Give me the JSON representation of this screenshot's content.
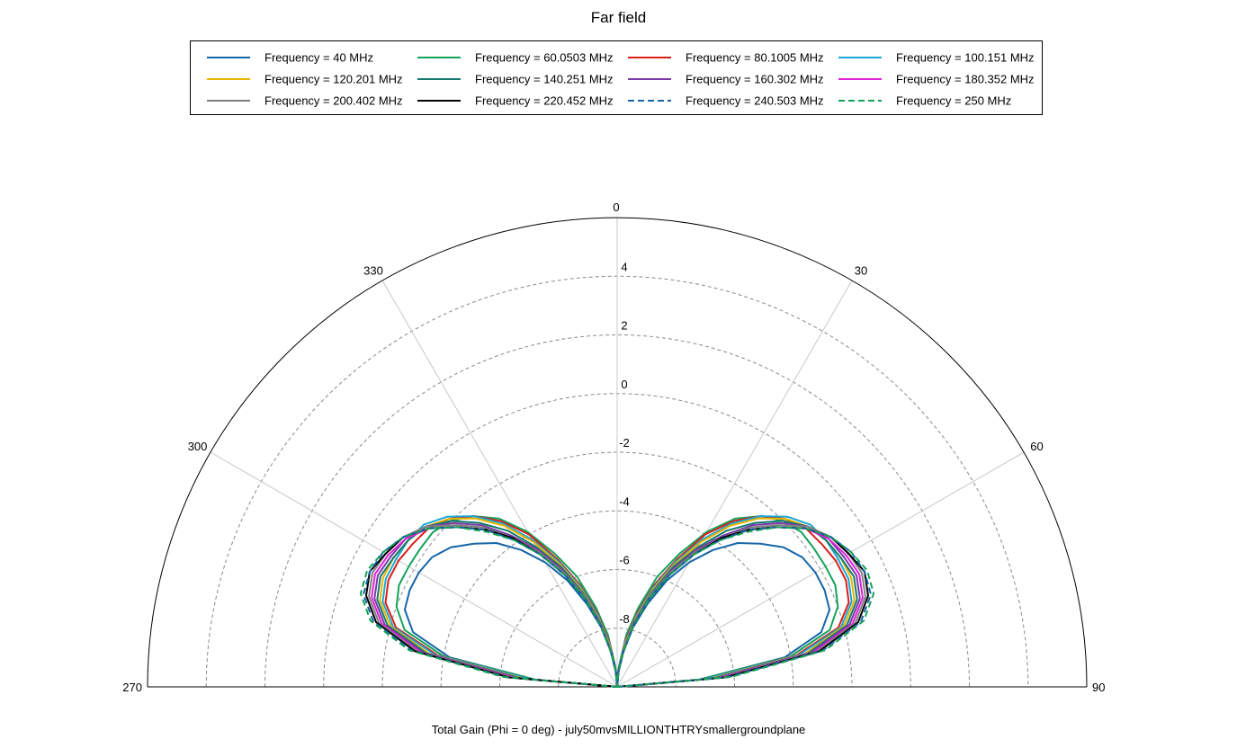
{
  "chart_data": {
    "type": "polar-line",
    "title": "Far field",
    "xlabel": "Total Gain (Phi = 0 deg) - july50mvsMILLIONTHTRYsmallergroundplane",
    "angle_range_deg": [
      -90,
      90
    ],
    "angle_ticks": [
      "270",
      "300",
      "330",
      "0",
      "30",
      "60",
      "90"
    ],
    "radial_range": [
      -10,
      6
    ],
    "radial_ticks": [
      "-8",
      "-6",
      "-4",
      "-2",
      "0",
      "2",
      "4"
    ],
    "grid": true,
    "legend_position": "top",
    "angles": [
      -90,
      -85,
      -80,
      -75,
      -70,
      -65,
      -60,
      -55,
      -50,
      -45,
      -40,
      -35,
      -30,
      -25,
      -20,
      -15,
      -10,
      -5,
      0,
      5,
      10,
      15,
      20,
      25,
      30,
      35,
      40,
      45,
      50,
      55,
      60,
      65,
      70,
      75,
      80,
      85,
      90
    ],
    "series": [
      {
        "name": "Frequency = 40 MHz",
        "color": "#1565a8",
        "dash": "solid",
        "values": [
          -10,
          -7.2,
          -4.2,
          -2.8,
          -2.3,
          -2.2,
          -2.2,
          -2.3,
          -2.6,
          -3.1,
          -3.6,
          -4.3,
          -5.1,
          -6.0,
          -7.0,
          -7.9,
          -8.8,
          -9.5,
          -10,
          -9.5,
          -8.8,
          -7.9,
          -7.0,
          -6.0,
          -5.1,
          -4.3,
          -3.6,
          -3.1,
          -2.6,
          -2.3,
          -2.2,
          -2.2,
          -2.3,
          -2.8,
          -4.2,
          -7.2,
          -10
        ]
      },
      {
        "name": "Frequency = 60.0503 MHz",
        "color": "#14a35a",
        "dash": "solid",
        "values": [
          -10,
          -7.2,
          -4.0,
          -2.5,
          -2.0,
          -1.8,
          -1.8,
          -1.8,
          -1.8,
          -2.0,
          -2.4,
          -3.0,
          -3.9,
          -5.0,
          -6.0,
          -7.2,
          -8.2,
          -9.3,
          -10,
          -9.3,
          -8.2,
          -7.2,
          -6.0,
          -5.0,
          -3.9,
          -3.0,
          -2.4,
          -2.0,
          -1.8,
          -1.8,
          -1.8,
          -1.8,
          -2.0,
          -2.5,
          -4.0,
          -7.2,
          -10
        ]
      },
      {
        "name": "Frequency = 80.1005 MHz",
        "color": "#d91e18",
        "dash": "solid",
        "values": [
          -10,
          -7.0,
          -3.8,
          -2.2,
          -1.6,
          -1.4,
          -1.4,
          -1.5,
          -1.6,
          -1.9,
          -2.4,
          -3.1,
          -4.0,
          -5.2,
          -6.3,
          -7.4,
          -8.4,
          -9.4,
          -10,
          -9.4,
          -8.4,
          -7.4,
          -6.3,
          -5.2,
          -4.0,
          -3.1,
          -2.4,
          -1.9,
          -1.6,
          -1.5,
          -1.4,
          -1.4,
          -1.6,
          -2.2,
          -3.8,
          -7.0,
          -10
        ]
      },
      {
        "name": "Frequency = 100.151 MHz",
        "color": "#1aa7d6",
        "dash": "solid",
        "values": [
          -10,
          -7.0,
          -3.7,
          -2.1,
          -1.5,
          -1.3,
          -1.3,
          -1.3,
          -1.4,
          -1.8,
          -2.4,
          -3.2,
          -4.2,
          -5.3,
          -6.4,
          -7.5,
          -8.5,
          -9.4,
          -10,
          -9.4,
          -8.5,
          -7.5,
          -6.4,
          -5.3,
          -4.2,
          -3.2,
          -2.4,
          -1.8,
          -1.4,
          -1.3,
          -1.3,
          -1.3,
          -1.5,
          -2.1,
          -3.7,
          -7.0,
          -10
        ]
      },
      {
        "name": "Frequency = 120.201 MHz",
        "color": "#e8b400",
        "dash": "solid",
        "values": [
          -10,
          -6.8,
          -3.5,
          -2.0,
          -1.4,
          -1.2,
          -1.2,
          -1.3,
          -1.5,
          -1.9,
          -2.5,
          -3.3,
          -4.3,
          -5.4,
          -6.5,
          -7.6,
          -8.6,
          -9.5,
          -10,
          -9.5,
          -8.6,
          -7.6,
          -6.5,
          -5.4,
          -4.3,
          -3.3,
          -2.5,
          -1.9,
          -1.5,
          -1.3,
          -1.2,
          -1.2,
          -1.4,
          -2.0,
          -3.5,
          -6.8,
          -10
        ]
      },
      {
        "name": "Frequency = 140.251 MHz",
        "color": "#137a6e",
        "dash": "solid",
        "values": [
          -10,
          -6.7,
          -3.4,
          -1.9,
          -1.3,
          -1.1,
          -1.2,
          -1.3,
          -1.5,
          -2.0,
          -2.7,
          -3.5,
          -4.5,
          -5.5,
          -6.6,
          -7.7,
          -8.7,
          -9.5,
          -10,
          -9.5,
          -8.7,
          -7.7,
          -6.6,
          -5.5,
          -4.5,
          -3.5,
          -2.7,
          -2.0,
          -1.5,
          -1.3,
          -1.2,
          -1.1,
          -1.3,
          -1.9,
          -3.4,
          -6.7,
          -10
        ]
      },
      {
        "name": "Frequency = 160.302 MHz",
        "color": "#7b3aa8",
        "dash": "solid",
        "values": [
          -10,
          -6.6,
          -3.3,
          -1.8,
          -1.2,
          -1.0,
          -1.1,
          -1.2,
          -1.5,
          -2.1,
          -2.8,
          -3.7,
          -4.6,
          -5.6,
          -6.7,
          -7.7,
          -8.7,
          -9.5,
          -10,
          -9.5,
          -8.7,
          -7.7,
          -6.7,
          -5.6,
          -4.6,
          -3.7,
          -2.8,
          -2.1,
          -1.5,
          -1.2,
          -1.1,
          -1.0,
          -1.2,
          -1.8,
          -3.3,
          -6.6,
          -10
        ]
      },
      {
        "name": "Frequency = 180.352 MHz",
        "color": "#e020d8",
        "dash": "solid",
        "values": [
          -10,
          -6.5,
          -3.2,
          -1.7,
          -1.1,
          -0.9,
          -1.0,
          -1.2,
          -1.6,
          -2.3,
          -3.0,
          -3.8,
          -4.7,
          -5.7,
          -6.7,
          -7.8,
          -8.7,
          -9.5,
          -10,
          -9.5,
          -8.7,
          -7.8,
          -6.7,
          -5.7,
          -4.7,
          -3.8,
          -3.0,
          -2.3,
          -1.6,
          -1.2,
          -1.0,
          -0.9,
          -1.1,
          -1.7,
          -3.2,
          -6.5,
          -10
        ]
      },
      {
        "name": "Frequency = 200.402 MHz",
        "color": "#808080",
        "dash": "solid",
        "values": [
          -10,
          -6.4,
          -3.1,
          -1.6,
          -1.0,
          -0.8,
          -0.9,
          -1.1,
          -1.5,
          -2.2,
          -2.9,
          -3.8,
          -4.7,
          -5.7,
          -6.7,
          -7.8,
          -8.7,
          -9.5,
          -10,
          -9.5,
          -8.7,
          -7.8,
          -6.7,
          -5.7,
          -4.7,
          -3.8,
          -2.9,
          -2.2,
          -1.5,
          -1.1,
          -0.9,
          -0.8,
          -1.0,
          -1.6,
          -3.1,
          -6.4,
          -10
        ]
      },
      {
        "name": "Frequency = 220.452 MHz",
        "color": "#000000",
        "dash": "solid",
        "values": [
          -10,
          -6.3,
          -3.0,
          -1.5,
          -0.9,
          -0.7,
          -0.9,
          -1.1,
          -1.6,
          -2.3,
          -3.0,
          -3.8,
          -4.8,
          -5.8,
          -6.8,
          -7.8,
          -8.8,
          -9.5,
          -10,
          -9.5,
          -8.8,
          -7.8,
          -6.8,
          -5.8,
          -4.8,
          -3.8,
          -3.0,
          -2.3,
          -1.6,
          -1.1,
          -0.9,
          -0.7,
          -0.9,
          -1.5,
          -3.0,
          -6.3,
          -10
        ]
      },
      {
        "name": "Frequency = 240.503 MHz",
        "color": "#1565a8",
        "dash": "dashed",
        "values": [
          -10,
          -6.2,
          -2.9,
          -1.4,
          -0.8,
          -0.7,
          -0.8,
          -1.1,
          -1.6,
          -2.3,
          -3.0,
          -3.9,
          -4.8,
          -5.8,
          -6.8,
          -7.8,
          -8.8,
          -9.5,
          -10,
          -9.5,
          -8.8,
          -7.8,
          -6.8,
          -5.8,
          -4.8,
          -3.9,
          -3.0,
          -2.3,
          -1.6,
          -1.1,
          -0.8,
          -0.7,
          -0.8,
          -1.4,
          -2.9,
          -6.2,
          -10
        ]
      },
      {
        "name": "Frequency = 250 MHz",
        "color": "#14a35a",
        "dash": "dashed",
        "values": [
          -10,
          -6.1,
          -2.8,
          -1.3,
          -0.7,
          -0.6,
          -0.8,
          -1.1,
          -1.6,
          -2.3,
          -3.1,
          -3.9,
          -4.8,
          -5.8,
          -6.8,
          -7.8,
          -8.8,
          -9.5,
          -10,
          -9.5,
          -8.8,
          -7.8,
          -6.8,
          -5.8,
          -4.8,
          -3.9,
          -3.1,
          -2.3,
          -1.6,
          -1.1,
          -0.8,
          -0.6,
          -0.7,
          -1.3,
          -2.8,
          -6.1,
          -10
        ]
      }
    ]
  }
}
